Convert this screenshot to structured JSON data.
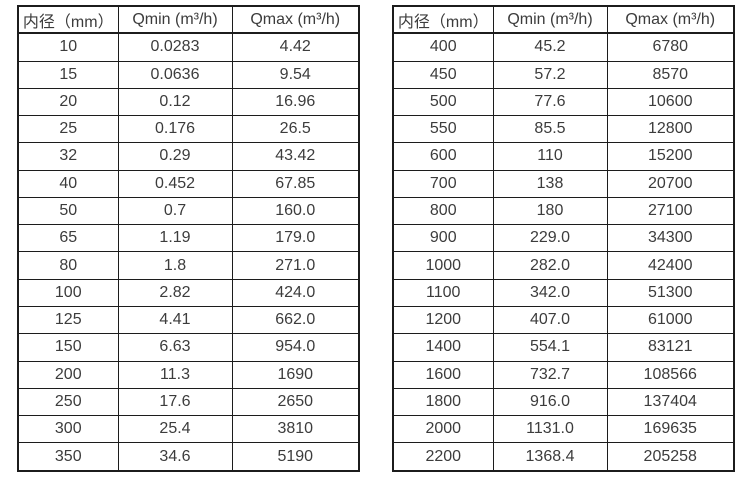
{
  "colors": {
    "background": "#ffffff",
    "border": "#1c1c1c",
    "text": "#3c3c3c"
  },
  "chart_data": [
    {
      "type": "table",
      "name": "flow-range-table-small-diameters",
      "columns": [
        "内径（mm）",
        "Qmin (m³/h)",
        "Qmax (m³/h)"
      ],
      "rows": [
        [
          "10",
          "0.0283",
          "4.42"
        ],
        [
          "15",
          "0.0636",
          "9.54"
        ],
        [
          "20",
          "0.12",
          "16.96"
        ],
        [
          "25",
          "0.176",
          "26.5"
        ],
        [
          "32",
          "0.29",
          "43.42"
        ],
        [
          "40",
          "0.452",
          "67.85"
        ],
        [
          "50",
          "0.7",
          "160.0"
        ],
        [
          "65",
          "1.19",
          "179.0"
        ],
        [
          "80",
          "1.8",
          "271.0"
        ],
        [
          "100",
          "2.82",
          "424.0"
        ],
        [
          "125",
          "4.41",
          "662.0"
        ],
        [
          "150",
          "6.63",
          "954.0"
        ],
        [
          "200",
          "11.3",
          "1690"
        ],
        [
          "250",
          "17.6",
          "2650"
        ],
        [
          "300",
          "25.4",
          "3810"
        ],
        [
          "350",
          "34.6",
          "5190"
        ]
      ]
    },
    {
      "type": "table",
      "name": "flow-range-table-large-diameters",
      "columns": [
        "内径（mm）",
        "Qmin (m³/h)",
        "Qmax (m³/h)"
      ],
      "rows": [
        [
          "400",
          "45.2",
          "6780"
        ],
        [
          "450",
          "57.2",
          "8570"
        ],
        [
          "500",
          "77.6",
          "10600"
        ],
        [
          "550",
          "85.5",
          "12800"
        ],
        [
          "600",
          "110",
          "15200"
        ],
        [
          "700",
          "138",
          "20700"
        ],
        [
          "800",
          "180",
          "27100"
        ],
        [
          "900",
          "229.0",
          "34300"
        ],
        [
          "1000",
          "282.0",
          "42400"
        ],
        [
          "1100",
          "342.0",
          "51300"
        ],
        [
          "1200",
          "407.0",
          "61000"
        ],
        [
          "1400",
          "554.1",
          "83121"
        ],
        [
          "1600",
          "732.7",
          "108566"
        ],
        [
          "1800",
          "916.0",
          "137404"
        ],
        [
          "2000",
          "1131.0",
          "169635"
        ],
        [
          "2200",
          "1368.4",
          "205258"
        ]
      ]
    }
  ]
}
